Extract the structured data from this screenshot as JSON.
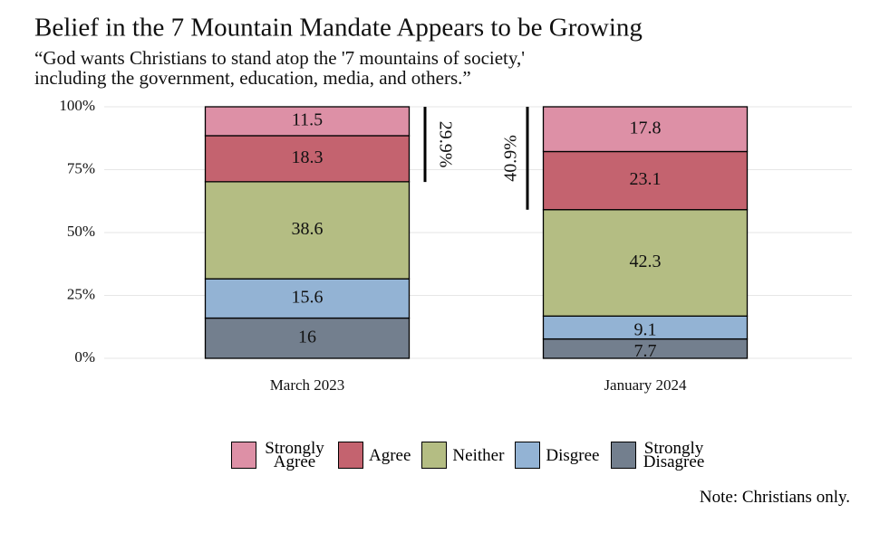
{
  "chart_data": {
    "type": "stacked_bar",
    "title": "Belief in the 7 Mountain Mandate Appears to be Growing",
    "subtitle": [
      "“God wants Christians to stand atop the '7 mountains of society,'",
      " including the government, education, media, and others.”"
    ],
    "categories": [
      "March 2023",
      "January 2024"
    ],
    "series": [
      {
        "name": "Strongly Agree",
        "color": "#dd90a6",
        "values": [
          11.5,
          17.8
        ]
      },
      {
        "name": "Agree",
        "color": "#c4636f",
        "values": [
          18.3,
          23.1
        ]
      },
      {
        "name": "Neither",
        "color": "#b4bd83",
        "values": [
          38.6,
          42.3
        ]
      },
      {
        "name": "Disgree",
        "color": "#93b3d4",
        "values": [
          15.6,
          9.1
        ]
      },
      {
        "name": "Strongly Disagree",
        "color": "#737f8e",
        "values": [
          16,
          7.7
        ]
      }
    ],
    "ylim": [
      0,
      100
    ],
    "yticks": [
      {
        "value": 0,
        "label": "0%"
      },
      {
        "value": 25,
        "label": "25%"
      },
      {
        "value": 50,
        "label": "50%"
      },
      {
        "value": 75,
        "label": "75%"
      },
      {
        "value": 100,
        "label": "100%"
      }
    ],
    "grid": true,
    "annotations": [
      {
        "value": 29.9,
        "label": "29.9%"
      },
      {
        "value": 40.9,
        "label": "40.9%"
      }
    ],
    "note": "Note: Christians only."
  }
}
